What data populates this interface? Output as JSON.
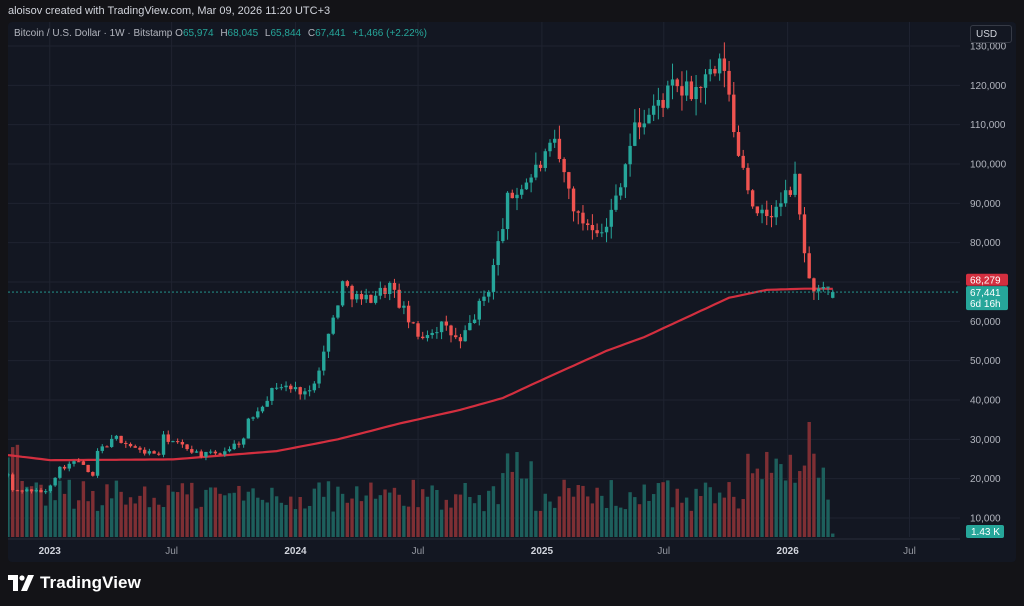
{
  "header": {
    "attribution": "aloisov created with TradingView.com, Mar 09, 2026 11:20 UTC+3"
  },
  "legend": {
    "symbol": "Bitcoin / U.S. Dollar · 1W · Bitstamp",
    "open_label": "O",
    "open": "65,974",
    "high_label": "H",
    "high": "68,045",
    "low_label": "L",
    "low": "65,844",
    "close_label": "C",
    "close": "67,441",
    "change": "+1,466 (+2.22%)"
  },
  "currency_button": "USD",
  "price_axis": {
    "ticks": [
      "130,000",
      "120,000",
      "110,000",
      "100,000",
      "90,000",
      "80,000",
      "70,000",
      "60,000",
      "50,000",
      "40,000",
      "30,000",
      "20,000",
      "10,000"
    ],
    "ma_label": "68,279",
    "price_label": "67,441",
    "countdown": "6d 16h",
    "volume_label": "1.43 K"
  },
  "time_axis": {
    "labels": [
      "2023",
      "Jul",
      "2024",
      "Jul",
      "2025",
      "Jul",
      "2026",
      "Jul"
    ]
  },
  "footer": {
    "brand": "TradingView"
  },
  "colors": {
    "up": "#26a69a",
    "down": "#ef5350",
    "ma": "#d32f3f",
    "volume_up": "#1d5f5c",
    "volume_down": "#7e2f34",
    "background": "#131722",
    "page": "#131317"
  },
  "chart_data": {
    "type": "candlestick",
    "interval": "1W",
    "y_unit": "USD",
    "ylim": [
      0,
      130000
    ],
    "x_start": "2022-10-31",
    "x_end": "2026-09-14",
    "last_close": 67441,
    "moving_average_last": 68279,
    "candles_anchor_closes": [
      [
        "2022-10-31",
        21000
      ],
      [
        "2022-11-07",
        16900
      ],
      [
        "2022-11-28",
        17100
      ],
      [
        "2022-12-26",
        16600
      ],
      [
        "2023-01-16",
        22700
      ],
      [
        "2023-02-13",
        24500
      ],
      [
        "2023-03-06",
        20300
      ],
      [
        "2023-03-13",
        26900
      ],
      [
        "2023-04-10",
        30400
      ],
      [
        "2023-05-15",
        27000
      ],
      [
        "2023-06-12",
        26300
      ],
      [
        "2023-06-19",
        30500
      ],
      [
        "2023-08-14",
        26100
      ],
      [
        "2023-09-11",
        26500
      ],
      [
        "2023-10-16",
        30000
      ],
      [
        "2023-10-23",
        34500
      ],
      [
        "2023-12-04",
        43800
      ],
      [
        "2024-01-22",
        41800
      ],
      [
        "2024-02-12",
        52000
      ],
      [
        "2024-03-11",
        69500
      ],
      [
        "2024-04-08",
        65000
      ],
      [
        "2024-05-20",
        69000
      ],
      [
        "2024-07-01",
        56000
      ],
      [
        "2024-08-05",
        59000
      ],
      [
        "2024-09-02",
        54500
      ],
      [
        "2024-10-14",
        68500
      ],
      [
        "2024-11-11",
        90500
      ],
      [
        "2024-12-16",
        97000
      ],
      [
        "2025-01-20",
        104500
      ],
      [
        "2025-02-24",
        86000
      ],
      [
        "2025-04-07",
        83500
      ],
      [
        "2025-05-19",
        109000
      ],
      [
        "2025-07-14",
        119000
      ],
      [
        "2025-08-11",
        118000
      ],
      [
        "2025-09-29",
        125000
      ],
      [
        "2025-10-13",
        108000
      ],
      [
        "2025-11-17",
        86000
      ],
      [
        "2025-12-15",
        88000
      ],
      [
        "2026-01-12",
        95500
      ],
      [
        "2026-01-26",
        78500
      ],
      [
        "2026-02-02",
        70000
      ],
      [
        "2026-02-16",
        67500
      ],
      [
        "2026-03-09",
        67441
      ]
    ],
    "moving_average_anchors": [
      [
        "2022-10-31",
        26000
      ],
      [
        "2023-01-02",
        24700
      ],
      [
        "2023-07-03",
        24900
      ],
      [
        "2023-12-04",
        27000
      ],
      [
        "2024-03-04",
        30000
      ],
      [
        "2024-06-03",
        34000
      ],
      [
        "2024-09-02",
        37500
      ],
      [
        "2024-11-04",
        40500
      ],
      [
        "2025-01-06",
        45500
      ],
      [
        "2025-04-07",
        52500
      ],
      [
        "2025-06-02",
        56000
      ],
      [
        "2025-08-04",
        61000
      ],
      [
        "2025-10-06",
        66000
      ],
      [
        "2025-12-01",
        68000
      ],
      [
        "2026-01-26",
        68300
      ],
      [
        "2026-03-09",
        68279
      ]
    ],
    "volume_scale_note": "volume pane, relative units",
    "volume_peak_date": "2026-02-02"
  }
}
